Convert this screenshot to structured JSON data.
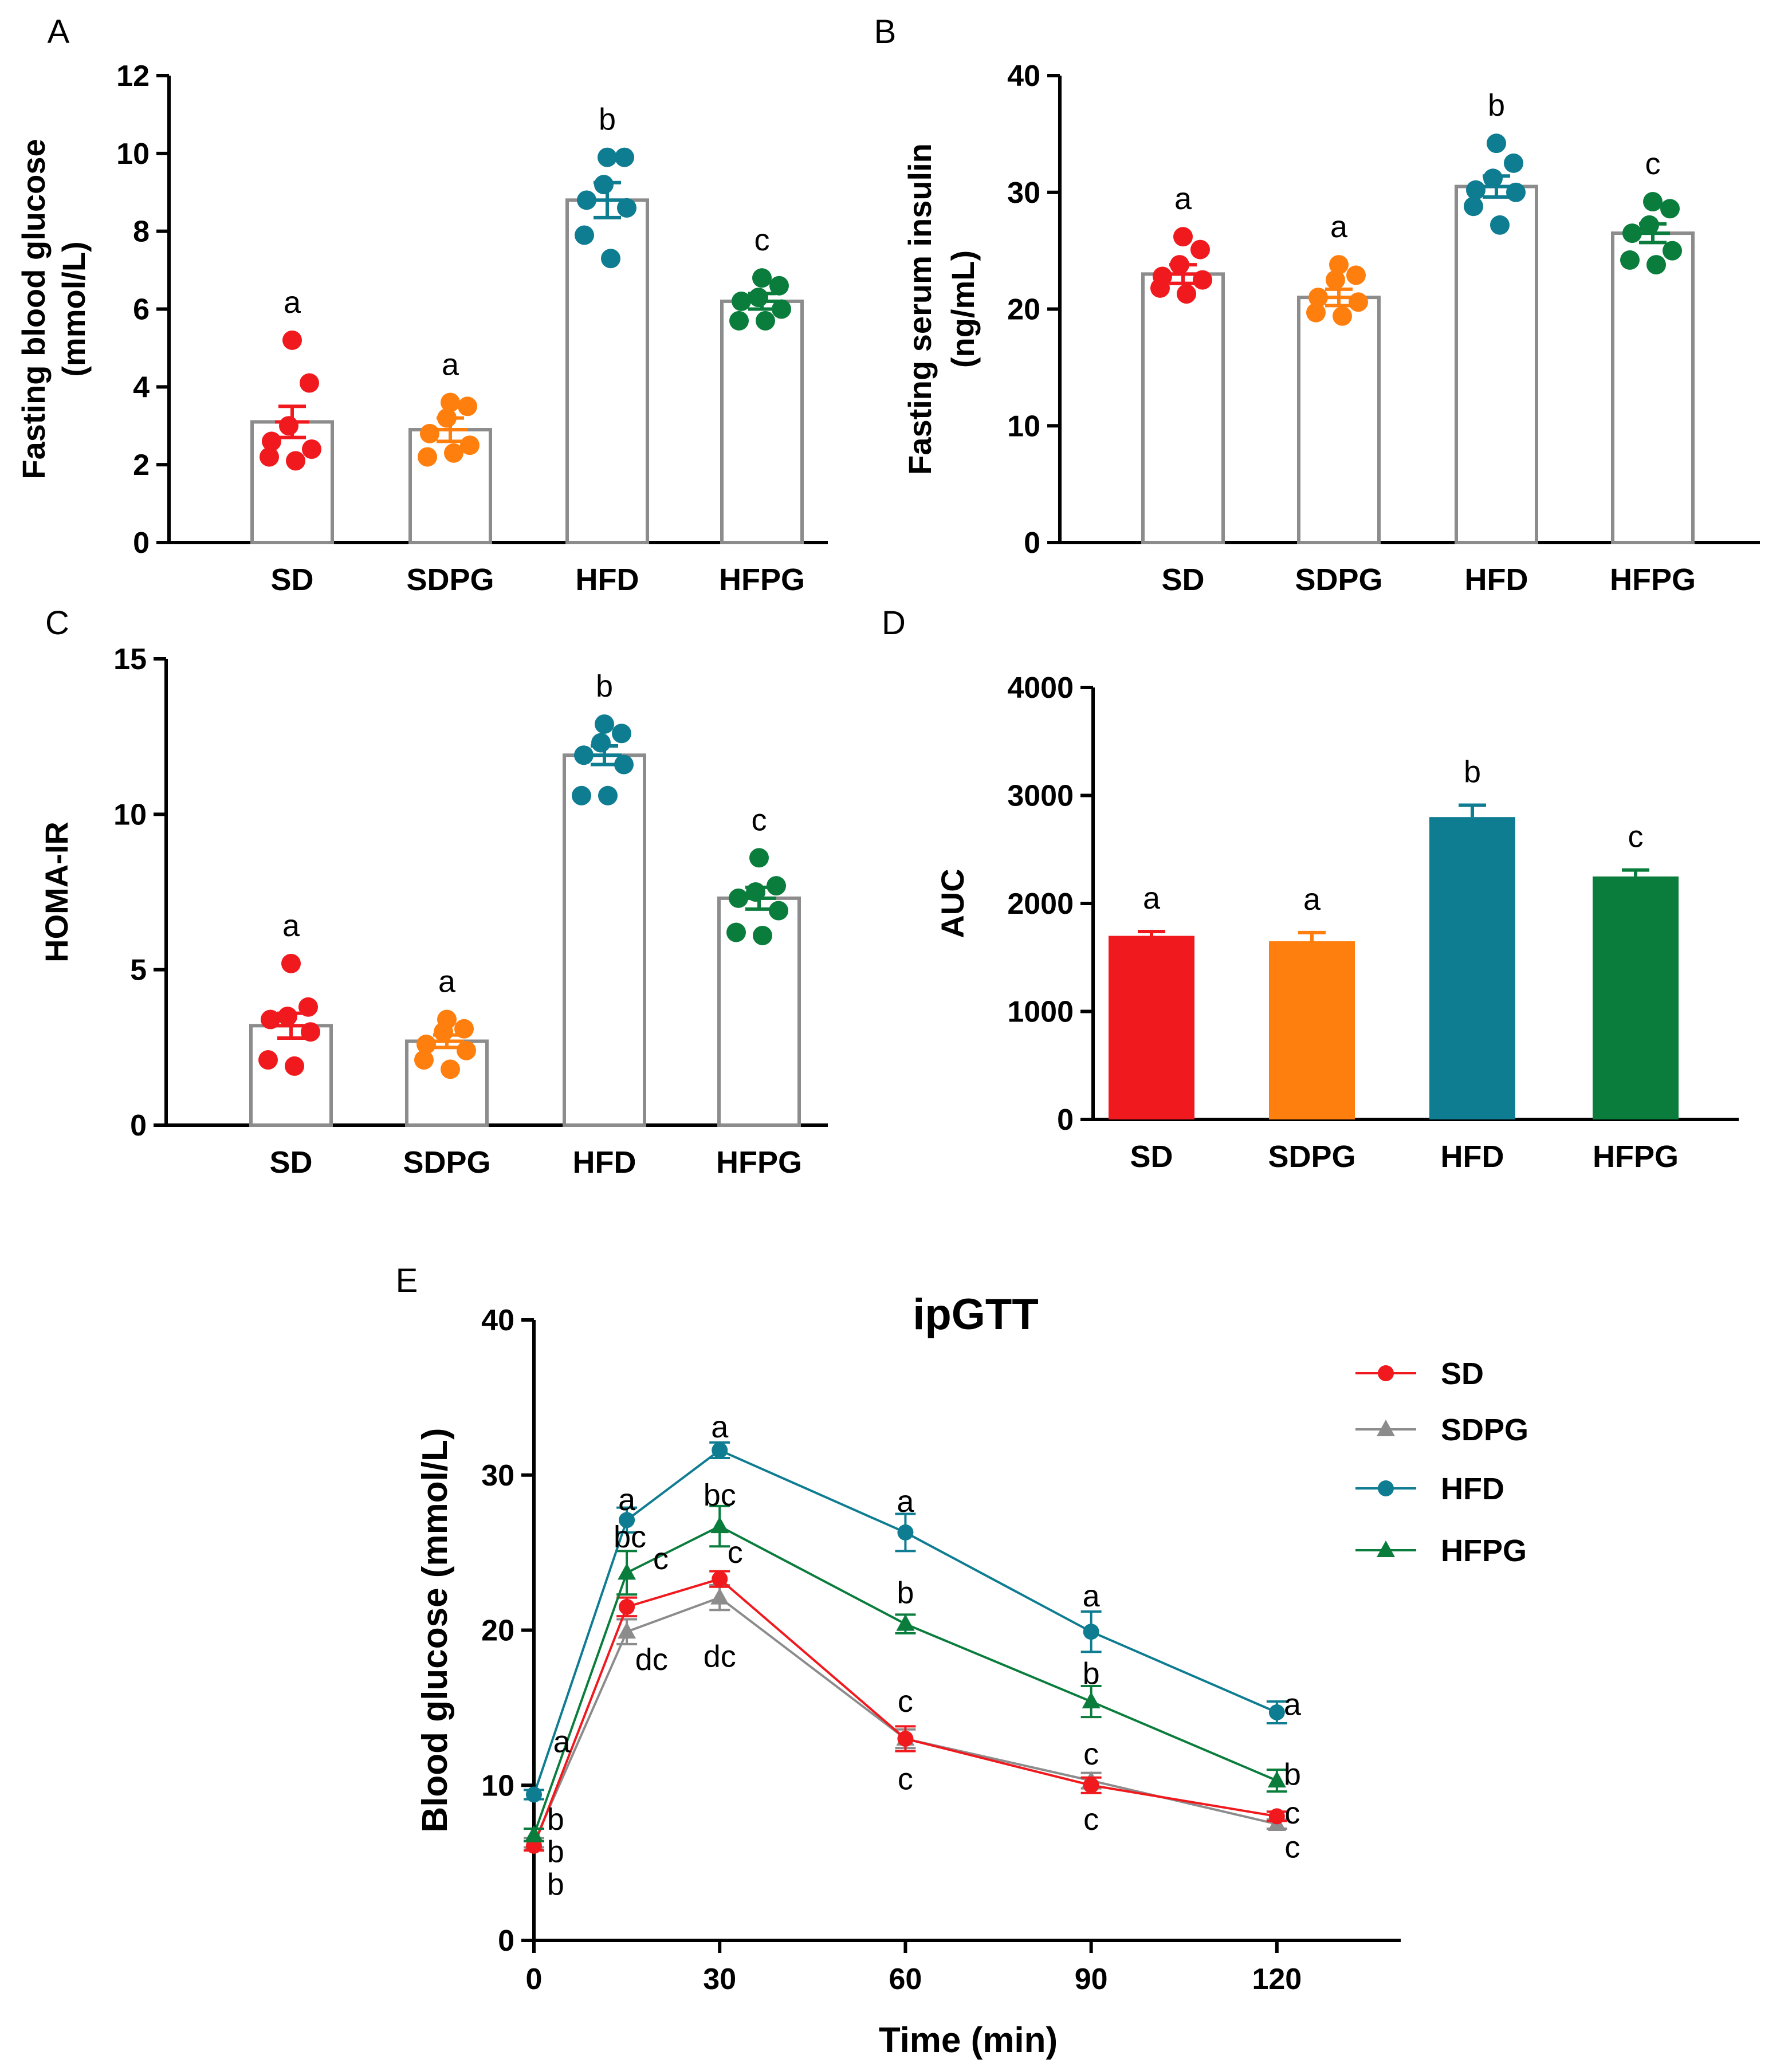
{
  "colors": {
    "SD": "#f0191e",
    "SDPG": "#ff7f0e",
    "HFD": "#0e7c91",
    "HFPG": "#0a7d3c",
    "gray": "#8c8c8c"
  },
  "chart_data": [
    {
      "panel": "A",
      "type": "bar",
      "style": "scatter-bar",
      "ylabel": [
        "Fasting blood glucose",
        "(mmol/L)"
      ],
      "ylim": [
        0,
        12
      ],
      "yticks": [
        0,
        2,
        4,
        6,
        8,
        10,
        12
      ],
      "categories": [
        "SD",
        "SDPG",
        "HFD",
        "HFPG"
      ],
      "values": [
        3.1,
        2.9,
        8.8,
        6.2
      ],
      "sem": [
        0.4,
        0.3,
        0.45,
        0.2
      ],
      "points": [
        [
          5.2,
          4.1,
          3.0,
          2.6,
          2.4,
          2.2,
          2.1
        ],
        [
          3.6,
          3.5,
          3.2,
          2.8,
          2.5,
          2.2,
          2.3
        ],
        [
          9.9,
          9.9,
          9.2,
          8.8,
          8.6,
          7.9,
          7.3
        ],
        [
          6.8,
          6.6,
          6.3,
          6.2,
          6.0,
          5.7,
          5.7
        ]
      ],
      "letters": [
        "a",
        "a",
        "b",
        "c"
      ]
    },
    {
      "panel": "B",
      "type": "bar",
      "style": "scatter-bar",
      "ylabel": [
        "Fasting serum insulin",
        "(ng/mL)"
      ],
      "ylim": [
        0,
        40
      ],
      "yticks": [
        0,
        10,
        20,
        30,
        40
      ],
      "categories": [
        "SD",
        "SDPG",
        "HFD",
        "HFPG"
      ],
      "values": [
        23,
        21,
        30.5,
        26.5
      ],
      "sem": [
        0.8,
        0.7,
        0.9,
        0.8
      ],
      "points": [
        [
          26.2,
          25.1,
          23.8,
          22.8,
          22.5,
          21.8,
          21.3
        ],
        [
          23.8,
          22.9,
          22.5,
          21.0,
          20.6,
          19.7,
          19.4
        ],
        [
          34.2,
          32.5,
          31.2,
          30.2,
          30.0,
          28.8,
          27.2
        ],
        [
          29.2,
          28.6,
          27.2,
          26.5,
          25.0,
          24.2,
          23.8
        ]
      ],
      "letters": [
        "a",
        "a",
        "b",
        "c"
      ]
    },
    {
      "panel": "C",
      "type": "bar",
      "style": "scatter-bar",
      "ylabel": [
        "HOMA-IR"
      ],
      "ylim": [
        0,
        15
      ],
      "yticks": [
        0,
        5,
        10,
        15
      ],
      "categories": [
        "SD",
        "SDPG",
        "HFD",
        "HFPG"
      ],
      "values": [
        3.2,
        2.7,
        11.9,
        7.3
      ],
      "sem": [
        0.4,
        0.2,
        0.3,
        0.35
      ],
      "points": [
        [
          5.2,
          3.8,
          3.5,
          3.4,
          3.0,
          2.1,
          1.9
        ],
        [
          3.4,
          3.1,
          3.0,
          2.6,
          2.4,
          2.1,
          1.8
        ],
        [
          12.9,
          12.6,
          12.3,
          11.9,
          11.6,
          10.6,
          10.6
        ],
        [
          8.6,
          7.7,
          7.5,
          7.3,
          6.9,
          6.2,
          6.1
        ]
      ],
      "letters": [
        "a",
        "a",
        "b",
        "c"
      ]
    },
    {
      "panel": "D",
      "type": "bar",
      "style": "filled-bar",
      "ylabel": [
        "AUC"
      ],
      "ylim": [
        0,
        4000
      ],
      "yticks": [
        0,
        1000,
        2000,
        3000,
        4000
      ],
      "categories": [
        "SD",
        "SDPG",
        "HFD",
        "HFPG"
      ],
      "values": [
        1700,
        1650,
        2800,
        2250
      ],
      "sem": [
        40,
        80,
        110,
        60
      ],
      "letters": [
        "a",
        "a",
        "b",
        "c"
      ]
    },
    {
      "panel": "E",
      "type": "line",
      "title": "ipGTT",
      "xlabel": "Time (min)",
      "ylabel": "Blood glucose (mmol/L)",
      "x": [
        0,
        15,
        30,
        60,
        90,
        120
      ],
      "xlim": [
        0,
        140
      ],
      "ylim": [
        0,
        40
      ],
      "xticks": [
        0,
        30,
        60,
        90,
        120
      ],
      "yticks": [
        0,
        10,
        20,
        30,
        40
      ],
      "legend_position": "top-right",
      "series": [
        {
          "name": "SD",
          "marker": "circle",
          "values": [
            6.1,
            21.5,
            23.3,
            13.0,
            10.0,
            8.0
          ],
          "err": [
            0.3,
            0.6,
            0.5,
            0.8,
            0.5,
            0.3
          ]
        },
        {
          "name": "SDPG",
          "marker": "triangle",
          "values": [
            6.3,
            19.9,
            22.1,
            13.0,
            10.3,
            7.5
          ],
          "err": [
            0.3,
            0.8,
            0.8,
            0.6,
            0.5,
            0.3
          ]
        },
        {
          "name": "HFD",
          "marker": "circle",
          "values": [
            9.4,
            27.1,
            31.6,
            26.3,
            19.9,
            14.7
          ],
          "err": [
            0.3,
            0.8,
            0.5,
            1.2,
            1.3,
            0.7
          ]
        },
        {
          "name": "HFPG",
          "marker": "triangle",
          "values": [
            6.8,
            23.7,
            26.7,
            20.4,
            15.4,
            10.3
          ],
          "err": [
            0.4,
            1.4,
            1.3,
            0.6,
            1.0,
            0.7
          ]
        }
      ],
      "annotations": [
        "a",
        "b",
        "b",
        "b",
        "a",
        "bc",
        "c",
        "dc",
        "a",
        "bc",
        "c",
        "dc",
        "a",
        "b",
        "c",
        "c",
        "a",
        "b",
        "c",
        "c",
        "a",
        "b",
        "c",
        "c"
      ]
    }
  ]
}
